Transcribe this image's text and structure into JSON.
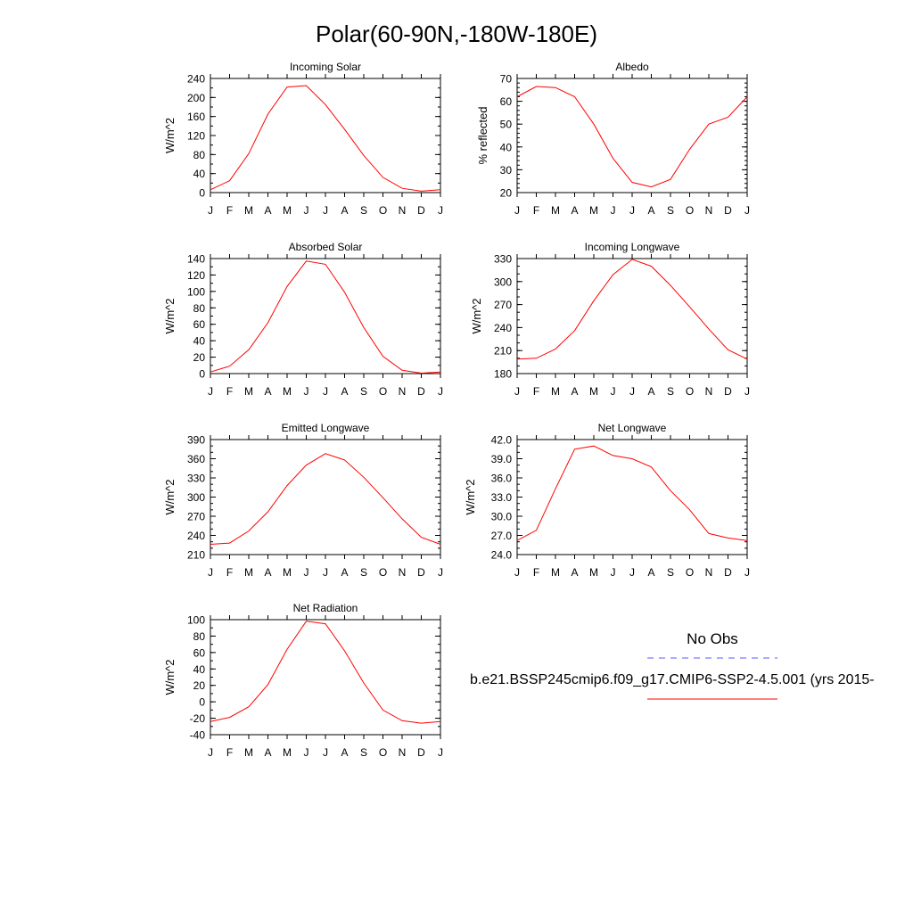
{
  "title": "Polar(60-90N,-180W-180E)",
  "month_labels": [
    "J",
    "F",
    "M",
    "A",
    "M",
    "J",
    "J",
    "A",
    "S",
    "O",
    "N",
    "D",
    "J"
  ],
  "colors": {
    "model": "#ff0000",
    "obs": "#5a5aff",
    "axis": "#000000"
  },
  "legend": {
    "obs_label": "No Obs",
    "model_label": "b.e21.BSSP245cmip6.f09_g17.CMIP6-SSP2-4.5.001 (yrs 2015-"
  },
  "chart_data": [
    {
      "type": "line",
      "title": "Incoming Solar",
      "ylabel": "W/m^2",
      "x": [
        "J",
        "F",
        "M",
        "A",
        "M",
        "J",
        "J",
        "A",
        "S",
        "O",
        "N",
        "D",
        "J"
      ],
      "ylim": [
        0,
        240
      ],
      "yticks": [
        "0",
        "40",
        "80",
        "120",
        "160",
        "200",
        "240"
      ],
      "yminor": 20,
      "series": [
        {
          "values": [
            6,
            25,
            82,
            165,
            222,
            225,
            185,
            133,
            78,
            32,
            9,
            3,
            6
          ]
        }
      ]
    },
    {
      "type": "line",
      "title": "Albedo",
      "ylabel": "% reflected",
      "x": [
        "J",
        "F",
        "M",
        "A",
        "M",
        "J",
        "J",
        "A",
        "S",
        "O",
        "N",
        "D",
        "J"
      ],
      "ylim": [
        20,
        70
      ],
      "yticks": [
        "20",
        "30",
        "40",
        "50",
        "60",
        "70"
      ],
      "yminor": 2,
      "series": [
        {
          "values": [
            62,
            66.5,
            66,
            62,
            50,
            35,
            24.5,
            22.5,
            25.8,
            39,
            50,
            53,
            62
          ]
        }
      ]
    },
    {
      "type": "line",
      "title": "Absorbed Solar",
      "ylabel": "W/m^2",
      "x": [
        "J",
        "F",
        "M",
        "A",
        "M",
        "J",
        "J",
        "A",
        "S",
        "O",
        "N",
        "D",
        "J"
      ],
      "ylim": [
        0,
        140
      ],
      "yticks": [
        "0",
        "20",
        "40",
        "60",
        "80",
        "100",
        "120",
        "140"
      ],
      "yminor": 10,
      "series": [
        {
          "values": [
            2,
            9,
            29,
            62,
            106,
            137,
            133,
            99,
            56,
            21,
            4,
            0.5,
            2
          ]
        }
      ]
    },
    {
      "type": "line",
      "title": "Incoming Longwave",
      "ylabel": "W/m^2",
      "x": [
        "J",
        "F",
        "M",
        "A",
        "M",
        "J",
        "J",
        "A",
        "S",
        "O",
        "N",
        "D",
        "J"
      ],
      "ylim": [
        180,
        330
      ],
      "yticks": [
        "180",
        "210",
        "240",
        "270",
        "300",
        "330"
      ],
      "yminor": 10,
      "series": [
        {
          "values": [
            199,
            200,
            212,
            236,
            275,
            309,
            329,
            320,
            295,
            267,
            238,
            211,
            199
          ]
        }
      ]
    },
    {
      "type": "line",
      "title": "Emitted Longwave",
      "ylabel": "W/m^2",
      "x": [
        "J",
        "F",
        "M",
        "A",
        "M",
        "J",
        "J",
        "A",
        "S",
        "O",
        "N",
        "D",
        "J"
      ],
      "ylim": [
        210,
        390
      ],
      "yticks": [
        "210",
        "240",
        "270",
        "300",
        "330",
        "360",
        "390"
      ],
      "yminor": 10,
      "series": [
        {
          "values": [
            226,
            228,
            247,
            277,
            318,
            350,
            368,
            358,
            331,
            299,
            266,
            237,
            226
          ]
        }
      ]
    },
    {
      "type": "line",
      "title": "Net Longwave",
      "ylabel": "W/m^2",
      "x": [
        "J",
        "F",
        "M",
        "A",
        "M",
        "J",
        "J",
        "A",
        "S",
        "O",
        "N",
        "D",
        "J"
      ],
      "ylim": [
        24,
        42
      ],
      "yticks": [
        "24.0",
        "27.0",
        "30.0",
        "33.0",
        "36.0",
        "39.0",
        "42.0"
      ],
      "yminor": 1,
      "series": [
        {
          "values": [
            26.2,
            27.8,
            34.3,
            40.5,
            41.0,
            39.5,
            39.0,
            37.7,
            34.0,
            31.0,
            27.3,
            26.6,
            26.2
          ]
        }
      ]
    },
    {
      "type": "line",
      "title": "Net Radiation",
      "ylabel": "W/m^2",
      "x": [
        "J",
        "F",
        "M",
        "A",
        "M",
        "J",
        "J",
        "A",
        "S",
        "O",
        "N",
        "D",
        "J"
      ],
      "ylim": [
        -40,
        100
      ],
      "yticks": [
        "-40",
        "-20",
        "0",
        "20",
        "40",
        "60",
        "80",
        "100"
      ],
      "yminor": 10,
      "series": [
        {
          "values": [
            -24,
            -19,
            -6,
            21,
            64,
            98,
            95,
            62,
            23,
            -10,
            -23,
            -26,
            -24
          ]
        }
      ]
    }
  ]
}
